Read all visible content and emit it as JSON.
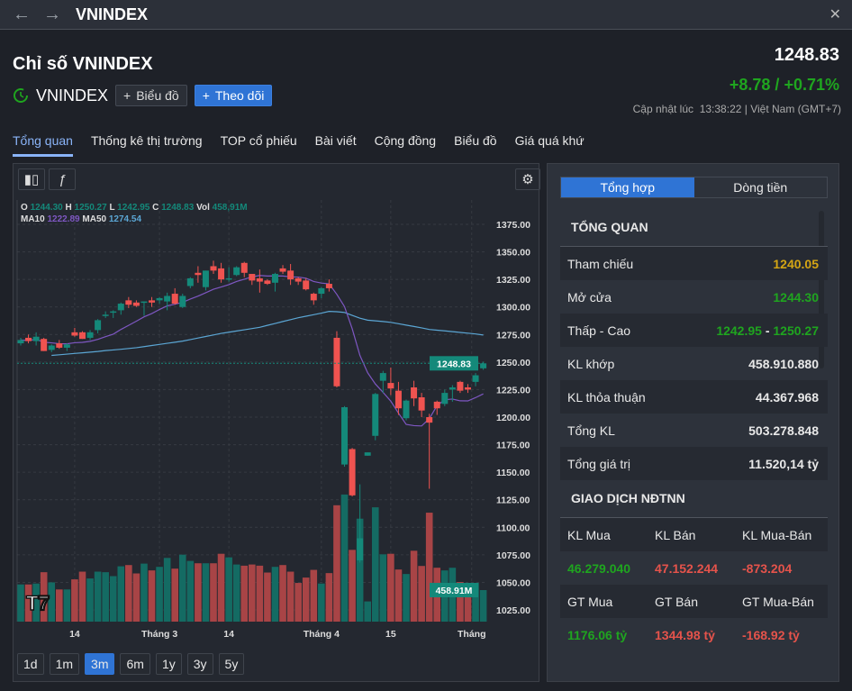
{
  "window": {
    "title": "VNINDEX",
    "back": "←",
    "forward": "→",
    "close": "✕"
  },
  "header": {
    "heading": "Chỉ số VNINDEX",
    "symbol": "VNINDEX",
    "chart_btn": "Biểu đồ",
    "follow_btn": "Theo dõi",
    "price": "1248.83",
    "change": "+8.78 / +0.71%",
    "updated_label": "Cập nhật lúc",
    "updated_time": "13:38:22 | Việt Nam (GMT+7)"
  },
  "tabs": [
    {
      "label": "Tổng quan"
    },
    {
      "label": "Thống kê thị trường"
    },
    {
      "label": "TOP cổ phiếu"
    },
    {
      "label": "Bài viết"
    },
    {
      "label": "Cộng đồng"
    },
    {
      "label": "Biểu đồ"
    },
    {
      "label": "Giá quá khứ"
    }
  ],
  "legend": {
    "o_label": "O",
    "o": "1244.30",
    "h_label": "H",
    "h": "1250.27",
    "l_label": "L",
    "l": "1242.95",
    "c_label": "C",
    "c": "1248.83",
    "vol_label": "Vol",
    "vol": "458,91M",
    "ma10_label": "MA10",
    "ma10": "1222.89",
    "ma50_label": "MA50",
    "ma50": "1274.54"
  },
  "ranges": [
    {
      "label": "1d"
    },
    {
      "label": "1m"
    },
    {
      "label": "3m"
    },
    {
      "label": "6m"
    },
    {
      "label": "1y"
    },
    {
      "label": "3y"
    },
    {
      "label": "5y"
    }
  ],
  "colors": {
    "up": "#14897a",
    "down": "#ef5350",
    "ma10": "#7e57c2",
    "ma50": "#5ba6d4",
    "accent": "#2f74d5"
  },
  "chart_data": {
    "type": "candlestick",
    "ylim": [
      1012,
      1388
    ],
    "yticks": [
      "1375.00",
      "1350.00",
      "1325.00",
      "1300.00",
      "1275.00",
      "1250.00",
      "1225.00",
      "1200.00",
      "1175.00",
      "1150.00",
      "1125.00",
      "1100.00",
      "1075.00",
      "1050.00",
      "1025.00"
    ],
    "xticks": [
      {
        "i": 7,
        "label": "14"
      },
      {
        "i": 18,
        "label": "Tháng 3"
      },
      {
        "i": 27,
        "label": "14"
      },
      {
        "i": 39,
        "label": "Tháng 4"
      },
      {
        "i": 48,
        "label": "15"
      },
      {
        "i": 58.5,
        "label": "Tháng"
      }
    ],
    "last_price_label": "1248.83",
    "last_volume_label": "458.91M",
    "ohlc": [
      [
        1267,
        1272,
        1265,
        1270
      ],
      [
        1272,
        1275,
        1267,
        1269
      ],
      [
        1269,
        1277,
        1265,
        1273
      ],
      [
        1271,
        1272,
        1260,
        1260
      ],
      [
        1261,
        1266,
        1259,
        1265
      ],
      [
        1267,
        1270,
        1262,
        1263
      ],
      [
        1263,
        1267,
        1260,
        1266
      ],
      [
        1277,
        1281,
        1273,
        1274
      ],
      [
        1277,
        1278,
        1271,
        1271
      ],
      [
        1272,
        1279,
        1270,
        1277
      ],
      [
        1279,
        1289,
        1276,
        1288
      ],
      [
        1292,
        1296,
        1290,
        1293
      ],
      [
        1295,
        1297,
        1290,
        1296
      ],
      [
        1297,
        1304,
        1293,
        1303
      ],
      [
        1306,
        1309,
        1299,
        1302
      ],
      [
        1304,
        1306,
        1300,
        1301
      ],
      [
        1304,
        1305,
        1292,
        1305
      ],
      [
        1306,
        1309,
        1300,
        1304
      ],
      [
        1306,
        1309,
        1303,
        1308
      ],
      [
        1305,
        1313,
        1297,
        1310
      ],
      [
        1312,
        1317,
        1302,
        1303
      ],
      [
        1300,
        1312,
        1299,
        1310
      ],
      [
        1319,
        1327,
        1317,
        1326
      ],
      [
        1331,
        1337,
        1322,
        1329
      ],
      [
        1318,
        1333,
        1315,
        1333
      ],
      [
        1337,
        1342,
        1330,
        1333
      ],
      [
        1335,
        1340,
        1322,
        1325
      ],
      [
        1325,
        1336,
        1323,
        1326
      ],
      [
        1329,
        1337,
        1328,
        1336
      ],
      [
        1340,
        1341,
        1327,
        1331
      ],
      [
        1330,
        1330,
        1320,
        1324
      ],
      [
        1326,
        1334,
        1313,
        1323
      ],
      [
        1324,
        1325,
        1320,
        1321
      ],
      [
        1322,
        1331,
        1314,
        1330
      ],
      [
        1335,
        1338,
        1330,
        1332
      ],
      [
        1333,
        1339,
        1320,
        1325
      ],
      [
        1326,
        1327,
        1320,
        1323
      ],
      [
        1324,
        1326,
        1315,
        1316
      ],
      [
        1312,
        1313,
        1302,
        1306
      ],
      [
        1312,
        1318,
        1308,
        1317
      ],
      [
        1321,
        1325,
        1314,
        1317
      ],
      [
        1272,
        1278,
        1227,
        1228
      ],
      [
        1157,
        1210,
        1155,
        1209
      ],
      [
        1171,
        1172,
        1128,
        1129
      ],
      [
        1070,
        1139,
        1068,
        1090
      ],
      [
        1165,
        1168,
        1165,
        1168
      ],
      [
        1183,
        1222,
        1179,
        1221
      ],
      [
        1233,
        1242,
        1222,
        1240
      ],
      [
        1231,
        1245,
        1220,
        1226
      ],
      [
        1224,
        1232,
        1202,
        1208
      ],
      [
        1199,
        1216,
        1197,
        1215
      ],
      [
        1227,
        1233,
        1210,
        1217
      ],
      [
        1218,
        1222,
        1200,
        1206
      ],
      [
        1200,
        1203,
        1135,
        1195
      ],
      [
        1214,
        1215,
        1202,
        1208
      ],
      [
        1212,
        1225,
        1210,
        1222
      ],
      [
        1225,
        1229,
        1214,
        1227
      ],
      [
        1232,
        1233,
        1222,
        1224
      ],
      [
        1227,
        1230,
        1222,
        1225
      ],
      [
        1232,
        1240,
        1228,
        1238
      ],
      [
        1244.3,
        1250.27,
        1242.95,
        1248.83
      ]
    ],
    "volume_m": [
      541,
      541,
      554,
      719,
      571,
      468,
      468,
      615,
      727,
      628,
      727,
      719,
      662,
      805,
      823,
      701,
      844,
      745,
      797,
      927,
      771,
      974,
      883,
      849,
      849,
      849,
      987,
      935,
      831,
      814,
      831,
      814,
      714,
      797,
      823,
      727,
      563,
      641,
      753,
      554,
      706,
      1693,
      1849,
      1044,
      1498,
      294,
      1663,
      979,
      987,
      758,
      693,
      1031,
      810,
      1585,
      784,
      745,
      784,
      576,
      563,
      563,
      458.91
    ],
    "ma50": [
      null,
      null,
      null,
      null,
      1256,
      1256.6,
      1257.2,
      1257.8,
      1258.4,
      1259,
      1259.6,
      1260.4,
      1261,
      1261.6,
      1262.3,
      1263,
      1264,
      1265,
      1266,
      1267,
      1268,
      1269,
      1270.4,
      1271.8,
      1273.2,
      1274.6,
      1276,
      1277.1,
      1278.2,
      1279.3,
      1280.4,
      1281.5,
      1283.3,
      1285,
      1286.8,
      1288.5,
      1290.2,
      1291.6,
      1293,
      1294.4,
      1296,
      1295.7,
      1295,
      1292.4,
      1289.8,
      1288,
      1287.4,
      1286.8,
      1286,
      1284.8,
      1283.5,
      1282.3,
      1281,
      1279.6,
      1278.9,
      1278.3,
      1277.6,
      1276.9,
      1276.2,
      1275.5,
      1274.54
    ]
  },
  "panel": {
    "tab_summary": "Tổng hợp",
    "tab_flow": "Dòng tiền",
    "overview_title": "TỔNG QUAN",
    "rows": [
      {
        "label": "Tham chiếu",
        "value": "1240.05"
      },
      {
        "label": "Mở cửa",
        "value": "1244.30"
      },
      {
        "label": "Thấp - Cao",
        "low": "1242.95",
        "sep": "-",
        "high": "1250.27"
      },
      {
        "label": "KL khớp",
        "value": "458.910.880"
      },
      {
        "label": "KL thỏa thuận",
        "value": "44.367.968"
      },
      {
        "label": "Tổng KL",
        "value": "503.278.848"
      },
      {
        "label": "Tổng giá trị",
        "value": "11.520,14 tỷ"
      }
    ],
    "foreign_title": "GIAO DỊCH NĐTNN",
    "kl_headers": [
      "KL Mua",
      "KL Bán",
      "KL Mua-Bán"
    ],
    "kl_values": [
      "46.279.040",
      "47.152.244",
      "-873.204"
    ],
    "gt_headers": [
      "GT Mua",
      "GT Bán",
      "GT Mua-Bán"
    ],
    "gt_values": [
      "1176.06 tỷ",
      "1344.98 tỷ",
      "-168.92 tỷ"
    ]
  }
}
